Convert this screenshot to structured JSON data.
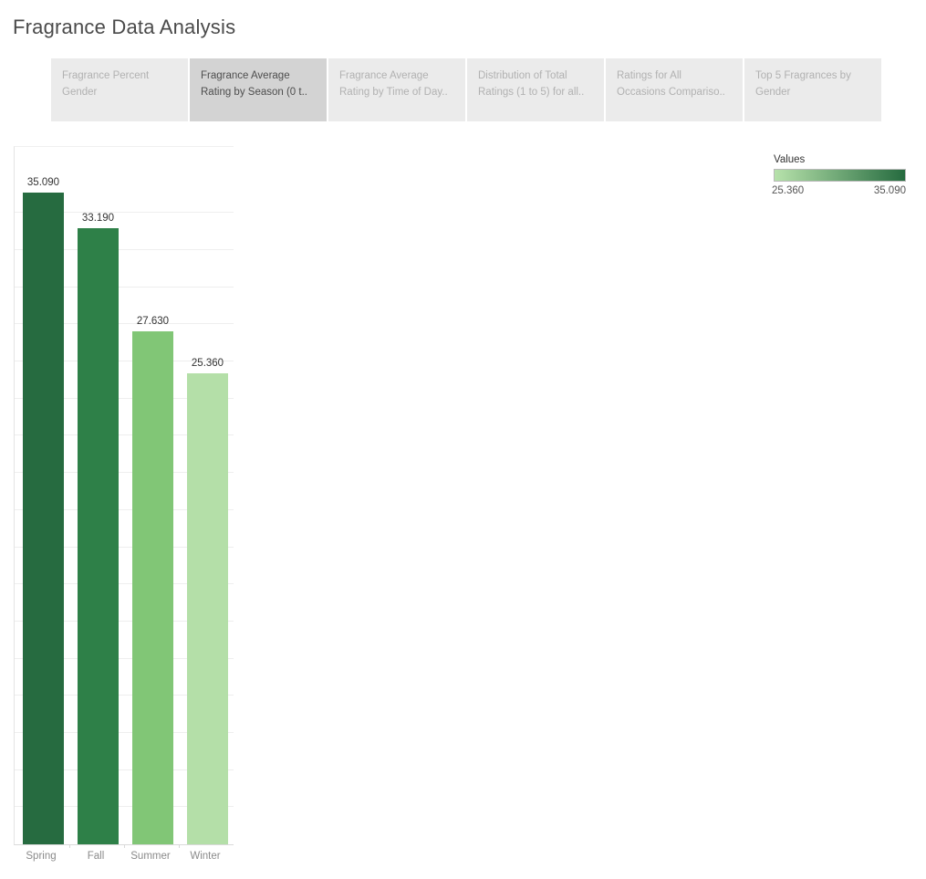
{
  "page": {
    "title": "Fragrance Data Analysis"
  },
  "tabs": [
    {
      "label": "Fragrance Percent Gender",
      "lines": [
        "Fragrance Percent",
        "Gender"
      ],
      "active": false
    },
    {
      "label": "Fragrance Average Rating by Season (0 t..",
      "lines": [
        "Fragrance Average",
        "Rating by Season (0 t.."
      ],
      "active": true
    },
    {
      "label": "Fragrance Average Rating by Time of Day..",
      "lines": [
        "Fragrance Average",
        "Rating by Time of Day.."
      ],
      "active": false
    },
    {
      "label": "Distribution of Total Ratings (1 to 5) for all..",
      "lines": [
        "Distribution of Total",
        "Ratings (1 to 5) for all.."
      ],
      "active": false
    },
    {
      "label": "Ratings for All Occasions Compariso..",
      "lines": [
        "Ratings for All",
        "Occasions Compariso.."
      ],
      "active": false
    },
    {
      "label": "Top 5 Fragrances by Gender",
      "lines": [
        "Top 5 Fragrances by",
        "Gender"
      ],
      "active": false
    }
  ],
  "legend": {
    "title": "Values",
    "min_label": "25.360",
    "max_label": "35.090",
    "min_color": "#b7e2ab",
    "max_color": "#256b3f"
  },
  "chart_data": {
    "type": "bar",
    "categories": [
      "Spring",
      "Fall",
      "Summer",
      "Winter"
    ],
    "values": [
      35.09,
      33.19,
      27.63,
      25.36
    ],
    "value_labels": [
      "35.090",
      "33.190",
      "27.630",
      "25.360"
    ],
    "bar_colors": [
      "#266b40",
      "#2e8048",
      "#81c676",
      "#b4dfa8"
    ],
    "title": "",
    "xlabel": "",
    "ylabel": "",
    "ylim": [
      0,
      37.65
    ],
    "gridline_step": 2,
    "grid": true,
    "legend_title": "Values",
    "legend_range": [
      25.36,
      35.09
    ],
    "legend_position": "top-right"
  }
}
